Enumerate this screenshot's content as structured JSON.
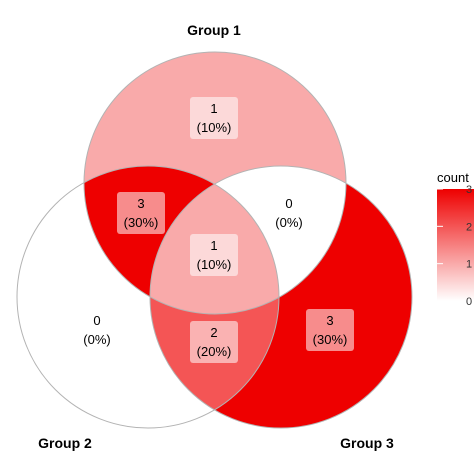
{
  "chart_data": {
    "type": "venn",
    "sets": [
      "Group 1",
      "Group 2",
      "Group 3"
    ],
    "regions": [
      {
        "sets": [
          "Group 1"
        ],
        "count": 1,
        "percent": "(10%)"
      },
      {
        "sets": [
          "Group 2"
        ],
        "count": 0,
        "percent": "(0%)"
      },
      {
        "sets": [
          "Group 3"
        ],
        "count": 3,
        "percent": "(30%)"
      },
      {
        "sets": [
          "Group 1",
          "Group 2"
        ],
        "count": 3,
        "percent": "(30%)"
      },
      {
        "sets": [
          "Group 1",
          "Group 3"
        ],
        "count": 0,
        "percent": "(0%)"
      },
      {
        "sets": [
          "Group 2",
          "Group 3"
        ],
        "count": 2,
        "percent": "(20%)"
      },
      {
        "sets": [
          "Group 1",
          "Group 2",
          "Group 3"
        ],
        "count": 1,
        "percent": "(10%)"
      }
    ],
    "legend": {
      "title": "count",
      "position": "right",
      "range": [
        0,
        3
      ],
      "ticks": [
        0,
        1,
        2,
        3
      ],
      "low_color": "#ffffff",
      "high_color": "#ee0000"
    },
    "outline_color": "#b3b3b3"
  }
}
